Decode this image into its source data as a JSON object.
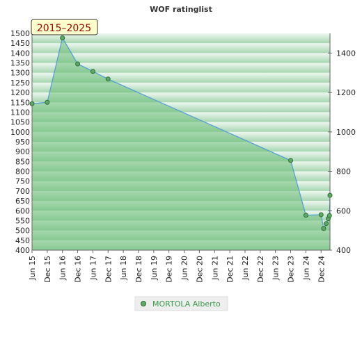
{
  "chart_data": {
    "type": "area",
    "title": "WOF ratinglist",
    "badge": "2015–2025",
    "xlabel": "",
    "ylabel": "",
    "y_left_ticks": [
      400,
      450,
      500,
      550,
      600,
      650,
      700,
      750,
      800,
      850,
      900,
      950,
      1000,
      1050,
      1100,
      1150,
      1200,
      1250,
      1300,
      1350,
      1400,
      1450,
      1500
    ],
    "y_right_ticks": [
      400,
      600,
      800,
      1000,
      1200,
      1400
    ],
    "ylim": [
      400,
      1500
    ],
    "x_tick_labels": [
      "Jun 15",
      "Dec 15",
      "Jun 16",
      "Dec 16",
      "Jun 17",
      "Dec 17",
      "Jun 18",
      "Dec 18",
      "Jun 19",
      "Dec 19",
      "Jun 20",
      "Dec 20",
      "Jun 21",
      "Dec 21",
      "Jun 22",
      "Dec 22",
      "Jun 23",
      "Dec 23",
      "Jun 24",
      "Dec 24"
    ],
    "xlim_months": [
      0,
      117.5
    ],
    "series": [
      {
        "name": "MORTOLA Alberto",
        "points": [
          {
            "m": 0,
            "y": 1143
          },
          {
            "m": 6,
            "y": 1150
          },
          {
            "m": 12,
            "y": 1477
          },
          {
            "m": 18,
            "y": 1345
          },
          {
            "m": 24,
            "y": 1307
          },
          {
            "m": 30,
            "y": 1268
          },
          {
            "m": 102,
            "y": 855
          },
          {
            "m": 108,
            "y": 577
          },
          {
            "m": 114,
            "y": 580
          },
          {
            "m": 115,
            "y": 510
          },
          {
            "m": 116,
            "y": 535
          },
          {
            "m": 116.8,
            "y": 560
          },
          {
            "m": 117.3,
            "y": 575
          },
          {
            "m": 117.5,
            "y": 678
          }
        ]
      }
    ],
    "grid": true,
    "legend_position": "bottom-center",
    "colors": {
      "line": "#4f9bd9",
      "fill": "#6cbd78",
      "marker": "#5daa64",
      "marker_stroke": "#2f6b36",
      "band_dark": "#a6d6b0",
      "band_light": "#eff7f1",
      "badge_bg": "#ffffcc",
      "badge_text": "#990000",
      "legend_text": "#3a9a4a"
    }
  }
}
